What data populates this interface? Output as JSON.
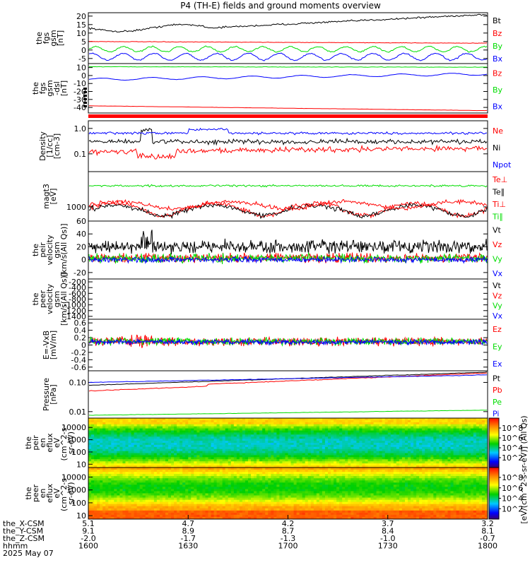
{
  "title": "P4 (TH-E) fields and ground moments overview",
  "colors": {
    "black": "#000000",
    "red": "#ff0000",
    "green": "#00dd00",
    "blue": "#0000ff"
  },
  "chart_data": [
    {
      "id": "fgs_gsm",
      "type": "line",
      "ylabel": [
        "the",
        "fgs",
        "gsm",
        "[nT]"
      ],
      "yticks": [
        20,
        15,
        10,
        5,
        0,
        -5
      ],
      "ylim": [
        -8,
        22
      ],
      "series": [
        {
          "name": "Bt",
          "color": "black"
        },
        {
          "name": "Bz",
          "color": "red"
        },
        {
          "name": "By",
          "color": "green"
        },
        {
          "name": "Bx",
          "color": "blue"
        }
      ]
    },
    {
      "id": "fgs_dsl",
      "type": "line",
      "ylabel": [
        "the",
        "fgs",
        "gsm",
        "-dsl",
        "[nT]"
      ],
      "yticks": [
        10,
        0,
        -10,
        -20,
        -30,
        -40
      ],
      "ylim": [
        -47,
        15
      ],
      "series": [
        {
          "name": "Bz",
          "color": "red"
        },
        {
          "name": "By",
          "color": "green"
        },
        {
          "name": "Bx",
          "color": "blue"
        }
      ]
    },
    {
      "id": "density",
      "type": "line",
      "log": true,
      "ylabel": [
        "Density",
        "[1/cc]",
        "[cm-3]"
      ],
      "yticks": [
        "1.0",
        "0.1"
      ],
      "ylim": [
        0.02,
        2.0
      ],
      "series": [
        {
          "name": "Ne",
          "color": "red"
        },
        {
          "name": "Ni",
          "color": "black"
        },
        {
          "name": "Npot",
          "color": "blue"
        }
      ]
    },
    {
      "id": "temp",
      "type": "line",
      "log": true,
      "ylabel": [
        "magt3",
        "[eV]"
      ],
      "yticks": [
        "1000"
      ],
      "ylim": [
        300,
        20000
      ],
      "series": [
        {
          "name": "Te⊥",
          "color": "red"
        },
        {
          "name": "Te∥",
          "color": "black"
        },
        {
          "name": "Ti⊥",
          "color": "red"
        },
        {
          "name": "Ti∥",
          "color": "green"
        }
      ]
    },
    {
      "id": "peir_vel",
      "type": "line",
      "ylabel": [
        "the",
        "peir",
        "velocity",
        "gsm",
        "[km/s(All Qs)]"
      ],
      "yticks": [
        60,
        40,
        20,
        0,
        -20
      ],
      "ylim": [
        -30,
        60
      ],
      "series": [
        {
          "name": "Vt",
          "color": "black"
        },
        {
          "name": "Vz",
          "color": "red"
        },
        {
          "name": "Vy",
          "color": "green"
        },
        {
          "name": "Vx",
          "color": "blue"
        }
      ]
    },
    {
      "id": "peer_vel",
      "type": "line",
      "ylabel": [
        "the",
        "peer",
        "velocity",
        "gsm",
        "[km/s(All Qs)]"
      ],
      "yticks": [
        -200,
        -400,
        -600,
        -800,
        -1000,
        -1200,
        -1400
      ],
      "ylim": [
        -1500,
        -100
      ],
      "series": [
        {
          "name": "Vt",
          "color": "black"
        },
        {
          "name": "Vz",
          "color": "red"
        },
        {
          "name": "Vy",
          "color": "green"
        },
        {
          "name": "Vx",
          "color": "blue"
        }
      ]
    },
    {
      "id": "exb",
      "type": "line",
      "ylabel": [
        "E=-VxB",
        "[mV/m]"
      ],
      "yticks": [
        0.6,
        0.4,
        0.2,
        0.0,
        -0.2,
        -0.4,
        -0.6
      ],
      "ylim": [
        -0.7,
        0.7
      ],
      "series": [
        {
          "name": "Ez",
          "color": "red"
        },
        {
          "name": "Ey",
          "color": "green"
        },
        {
          "name": "Ex",
          "color": "blue"
        }
      ]
    },
    {
      "id": "pressure",
      "type": "line",
      "log": true,
      "ylabel": [
        "Pressure",
        "[nPa]"
      ],
      "yticks": [
        "0.10",
        "0.01"
      ],
      "ylim": [
        0.006,
        0.25
      ],
      "series": [
        {
          "name": "Pt",
          "color": "black"
        },
        {
          "name": "Pb",
          "color": "red"
        },
        {
          "name": "Pe",
          "color": "green"
        },
        {
          "name": "Pi",
          "color": "blue"
        }
      ]
    },
    {
      "id": "peir_en",
      "type": "heatmap",
      "ylabel": [
        "the",
        "peir",
        "en",
        "eflux",
        "eV",
        "(cm^2-s-",
        "sr-eV)"
      ],
      "yticks": [
        "10000",
        "1000",
        "100",
        "10"
      ]
    },
    {
      "id": "peer_en",
      "type": "heatmap",
      "ylabel": [
        "the",
        "peer",
        "en",
        "eflux",
        "eV",
        "(cm^2-s-",
        "sr-eV)"
      ],
      "yticks": [
        "10000",
        "1000",
        "100",
        "10"
      ]
    }
  ],
  "colorbar": {
    "upper_ticks": [
      "10^8",
      "10^6",
      "10^4",
      "10^2"
    ],
    "lower_ticks": [
      "10^8",
      "10^6",
      "10^4",
      "10^2"
    ],
    "label": "[eV/(cm^2-s-sr-eV)] (All Qs)"
  },
  "xaxis": {
    "rows": [
      {
        "label": "the_X-CSM",
        "values": [
          "5.1",
          "4.7",
          "4.2",
          "3.7",
          "3.2"
        ]
      },
      {
        "label": "the_Y-CSM",
        "values": [
          "9.1",
          "8.9",
          "8.7",
          "8.4",
          "8.1"
        ]
      },
      {
        "label": "the_Z-CSM",
        "values": [
          "-2.0",
          "-1.7",
          "-1.3",
          "-1.0",
          "-0.7"
        ]
      },
      {
        "label": "hhmm",
        "values": [
          "1600",
          "1630",
          "1700",
          "1730",
          "1800"
        ]
      }
    ],
    "date": "2025 May 07"
  }
}
